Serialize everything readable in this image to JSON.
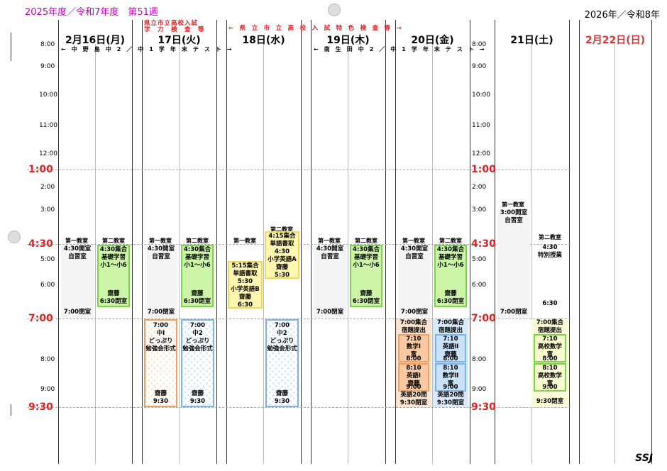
{
  "header": {
    "left": "2025年度／令和7年度　第51週",
    "right": "2026年／令和8年"
  },
  "days": {
    "mon": "2月16日(月)",
    "tue": "17日(火)",
    "wed": "18日(水)",
    "thu": "19日(木)",
    "fri": "20日(金)",
    "sat": "21日(土)",
    "sun": "2月22日(日)"
  },
  "times": {
    "t8": "8:00",
    "t9": "9:00",
    "t10": "10:00",
    "t11": "11:00",
    "t12": "12:00",
    "t100": "1:00",
    "t2": "2:00",
    "t3": "3:00",
    "t430": "4:30",
    "t5": "5:00",
    "t6": "6:00",
    "t700": "7:00",
    "t8pm": "8:00",
    "t9pm": "9:00",
    "t930": "9:30"
  },
  "notes": {
    "kenritsu1": "県立市立高校入試",
    "kenritsu2": "学　力　検　査　等",
    "tokushoku": "←　県　立　市　立　高　校　入　試　特　色　検　査　等　→",
    "nakano": "←　中　野　島　中　2　／　中　1　学　年　末　テ　ス　ト　→",
    "minami": "←　南　生　田　中　2　／　中　1　学　年　末　テ　ス　ト　→"
  },
  "rooms": {
    "room1": "第一教室",
    "room2": "第二教室"
  },
  "blocks": {
    "jishu": [
      "4:30開室",
      "自習室"
    ],
    "close700": "7:00閉室",
    "kiso": [
      "4:30集合",
      "基礎学習",
      "小1～小6"
    ],
    "kiso_end": [
      "齋藤",
      "6:30閉室"
    ],
    "wed_tango1": [
      "5:15集合",
      "単語書取",
      "5:30",
      "小学英語B",
      "齋藤",
      "6:30"
    ],
    "wed_tango2": [
      "4:15集合",
      "単語書取",
      "4:30",
      "小学英語A",
      "齋藤",
      "5:30"
    ],
    "tue_c1": [
      "7:00",
      "中Ⅰ",
      "どっぷり",
      "勉強会形式"
    ],
    "tue_c1_end": [
      "齋藤",
      "9:30"
    ],
    "tue_c2": [
      "7:00",
      "中2",
      "どっぷり",
      "勉強会形式"
    ],
    "tue_c2_end": [
      "齋藤",
      "9:30"
    ],
    "fri_c1_top": [
      "7:00集合",
      "宿題提出"
    ],
    "fri_c1_a": [
      "7:10",
      "数学Ⅰ",
      "富",
      "8:00"
    ],
    "fri_c1_b": [
      "8:10",
      "英語Ⅰ",
      "齋藤",
      "9:00"
    ],
    "fri_c1_bot": [
      "英語20問",
      "9:30閉室"
    ],
    "fri_c2_top": [
      "7:00集合",
      "宿題提出"
    ],
    "fri_c2_a": [
      "7:10",
      "英語Ⅱ",
      "齋藤",
      "8:00"
    ],
    "fri_c2_b": [
      "8:10",
      "数学Ⅱ",
      "富",
      "9:00"
    ],
    "fri_c2_bot": [
      "英語20問",
      "9:30閉室"
    ],
    "sat_c1": [
      "3:00開室",
      "自習室"
    ],
    "sat_c1_end": "7:00閉室",
    "sat_c2": [
      "4:30",
      "特別授業"
    ],
    "sat_c2_end": "6:30",
    "sat_top": [
      "7:00集合",
      "宿題提出"
    ],
    "sat_a": [
      "7:10",
      "高校数学",
      "富",
      "8:00"
    ],
    "sat_b": [
      "8:10",
      "高校数学",
      "富",
      "9:00"
    ],
    "sat_end": "9:30閉室"
  },
  "footer": "SSJ"
}
